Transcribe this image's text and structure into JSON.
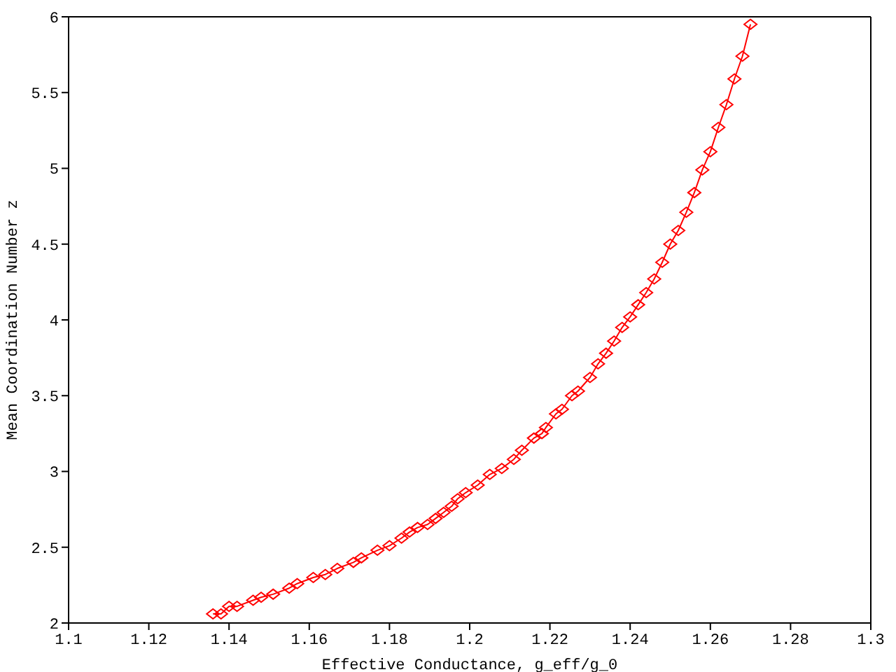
{
  "chart_data": {
    "type": "line",
    "xlabel": "Effective Conductance, g_eff/g_0",
    "ylabel": "Mean Coordination Number z",
    "x": [
      1.136,
      1.138,
      1.14,
      1.142,
      1.146,
      1.148,
      1.151,
      1.155,
      1.157,
      1.161,
      1.164,
      1.167,
      1.171,
      1.173,
      1.177,
      1.18,
      1.183,
      1.185,
      1.187,
      1.1895,
      1.1915,
      1.1935,
      1.1955,
      1.197,
      1.199,
      1.202,
      1.205,
      1.208,
      1.211,
      1.213,
      1.216,
      1.218,
      1.219,
      1.2215,
      1.223,
      1.2255,
      1.227,
      1.23,
      1.232,
      1.234,
      1.236,
      1.238,
      1.24,
      1.242,
      1.244,
      1.246,
      1.248,
      1.25,
      1.252,
      1.254,
      1.256,
      1.258,
      1.26,
      1.262,
      1.264,
      1.266,
      1.268,
      1.27
    ],
    "series": [
      {
        "color": "#ff0000",
        "values": [
          2.06,
          2.06,
          2.11,
          2.11,
          2.15,
          2.17,
          2.19,
          2.23,
          2.26,
          2.3,
          2.32,
          2.36,
          2.4,
          2.43,
          2.48,
          2.51,
          2.56,
          2.6,
          2.63,
          2.65,
          2.69,
          2.73,
          2.77,
          2.82,
          2.86,
          2.91,
          2.98,
          3.02,
          3.08,
          3.14,
          3.22,
          3.25,
          3.29,
          3.38,
          3.41,
          3.5,
          3.53,
          3.62,
          3.71,
          3.78,
          3.86,
          3.95,
          4.02,
          4.1,
          4.18,
          4.27,
          4.38,
          4.5,
          4.59,
          4.71,
          4.84,
          4.99,
          5.11,
          5.27,
          5.42,
          5.59,
          5.74,
          5.95
        ]
      }
    ],
    "xlim": [
      1.1,
      1.3
    ],
    "xticks": [
      1.1,
      1.12,
      1.14,
      1.16,
      1.18,
      1.2,
      1.22,
      1.24,
      1.26,
      1.28,
      1.3
    ],
    "ylim": [
      2,
      6
    ],
    "yticks": [
      2,
      2.5,
      3,
      3.5,
      4,
      4.5,
      5,
      5.5,
      6
    ],
    "marker": "diamond",
    "line_style": "solid"
  }
}
